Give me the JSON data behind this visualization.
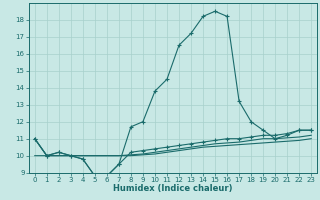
{
  "xlabel": "Humidex (Indice chaleur)",
  "bg_color": "#c8e8e5",
  "grid_color": "#a8d0cc",
  "line_color": "#1a6b6b",
  "xlim": [
    -0.5,
    23.5
  ],
  "ylim": [
    9,
    19
  ],
  "xticks": [
    0,
    1,
    2,
    3,
    4,
    5,
    6,
    7,
    8,
    9,
    10,
    11,
    12,
    13,
    14,
    15,
    16,
    17,
    18,
    19,
    20,
    21,
    22,
    23
  ],
  "yticks": [
    9,
    10,
    11,
    12,
    13,
    14,
    15,
    16,
    17,
    18
  ],
  "line1_x": [
    0,
    1,
    2,
    3,
    4,
    5,
    6,
    7,
    8,
    9,
    10,
    11,
    12,
    13,
    14,
    15,
    16,
    17,
    18,
    19,
    20,
    21,
    22,
    23
  ],
  "line1_y": [
    11,
    10,
    10.2,
    10,
    9.8,
    8.8,
    8.8,
    9.5,
    11.7,
    12.0,
    13.8,
    14.5,
    16.5,
    17.2,
    18.2,
    18.5,
    18.2,
    13.2,
    12,
    11.5,
    11,
    11.2,
    11.5,
    11.5
  ],
  "line2_x": [
    0,
    1,
    2,
    3,
    4,
    5,
    6,
    7,
    8,
    9,
    10,
    11,
    12,
    13,
    14,
    15,
    16,
    17,
    18,
    19,
    20,
    21,
    22,
    23
  ],
  "line2_y": [
    11,
    10,
    10.2,
    10,
    9.8,
    8.8,
    8.8,
    9.5,
    10.2,
    10.3,
    10.4,
    10.5,
    10.6,
    10.7,
    10.8,
    10.9,
    11.0,
    11.0,
    11.1,
    11.2,
    11.2,
    11.3,
    11.5,
    11.5
  ],
  "line3_x": [
    0,
    1,
    2,
    3,
    4,
    5,
    6,
    7,
    8,
    9,
    10,
    11,
    12,
    13,
    14,
    15,
    16,
    17,
    18,
    19,
    20,
    21,
    22,
    23
  ],
  "line3_y": [
    11,
    10,
    10,
    10,
    10,
    10,
    10,
    10,
    10.05,
    10.1,
    10.2,
    10.3,
    10.4,
    10.5,
    10.6,
    10.7,
    10.75,
    10.8,
    10.9,
    11.0,
    11.0,
    11.05,
    11.1,
    11.2
  ],
  "line4_x": [
    0,
    1,
    2,
    3,
    4,
    5,
    6,
    7,
    8,
    9,
    10,
    11,
    12,
    13,
    14,
    15,
    16,
    17,
    18,
    19,
    20,
    21,
    22,
    23
  ],
  "line4_y": [
    10.0,
    10.0,
    10.0,
    10.0,
    10.0,
    10.0,
    10.0,
    10.0,
    10.0,
    10.05,
    10.1,
    10.2,
    10.3,
    10.4,
    10.5,
    10.55,
    10.6,
    10.65,
    10.7,
    10.75,
    10.8,
    10.85,
    10.9,
    11.0
  ]
}
